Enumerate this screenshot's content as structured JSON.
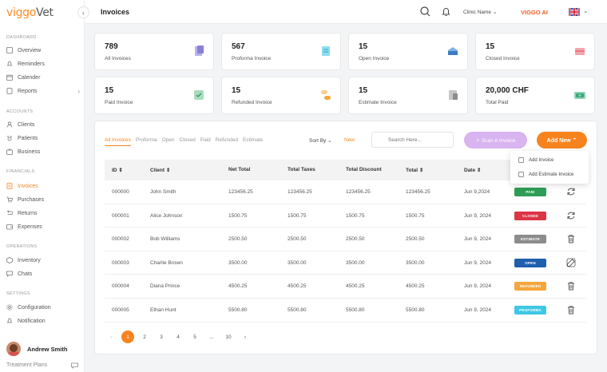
{
  "sidebar": {
    "logo_a": "viggo",
    "logo_b": "Vet",
    "collapse": "‹",
    "sections": [
      "DASHBOARD",
      "ACCOUNTS",
      "FINANCIALS",
      "OPERATIONS",
      "SETTINGS"
    ],
    "items": [
      {
        "label": "Overview"
      },
      {
        "label": "Reminders"
      },
      {
        "label": "Calender"
      },
      {
        "label": "Reports",
        "arrow": "›"
      },
      {
        "label": "Clients"
      },
      {
        "label": "Patients"
      },
      {
        "label": "Business"
      },
      {
        "label": "Invoices"
      },
      {
        "label": "Purchases"
      },
      {
        "label": "Returns"
      },
      {
        "label": "Expenses"
      },
      {
        "label": "Inventory"
      },
      {
        "label": "Chats"
      },
      {
        "label": "Configuration"
      },
      {
        "label": "Notification"
      }
    ],
    "user_name": "Andrew Smith",
    "footer_label": "Treatment Plans"
  },
  "topbar": {
    "title": "Invoices",
    "clinic_label": "Clinic Name",
    "ai_label": "VIGGO AI"
  },
  "cards": [
    {
      "value": "789",
      "label": "All Invoices",
      "color": "#8a7fd6"
    },
    {
      "value": "567",
      "label": "Proforma Invoice",
      "color": "#4dc3e6"
    },
    {
      "value": "15",
      "label": "Open Invoice",
      "color": "#3b7dc4"
    },
    {
      "value": "15",
      "label": "Closed Invoice",
      "color": "#e35a6a"
    },
    {
      "value": "15",
      "label": "Paid Invoice",
      "color": "#5bb587"
    },
    {
      "value": "15",
      "label": "Refunded Invoice",
      "color": "#f4a63c"
    },
    {
      "value": "15",
      "label": "Estimate Invoice",
      "color": "#8d8d8d"
    },
    {
      "value": "20,000 CHF",
      "label": "Total Paid",
      "color": "#3aa57a"
    }
  ],
  "filters": {
    "tabs": [
      "All Invoices",
      "Proforma",
      "Open",
      "Closed",
      "Paid",
      "Refunded",
      "Estimate"
    ],
    "sort_label": "Sort By",
    "sort_value": "New",
    "search_placeholder": "Search Here...",
    "scan_label": "Scan A Invoice",
    "add_label": "Add New"
  },
  "dropdown": {
    "items": [
      "Add Invoice",
      "Add Estimate Invoice"
    ]
  },
  "table": {
    "headers": [
      "ID",
      "Client",
      "Net Total",
      "Total Taxes",
      "Total Discount",
      "Total",
      "Date"
    ],
    "rows": [
      {
        "id": "000000",
        "client": "John Smith",
        "net": "123456.25",
        "taxes": "123456.25",
        "discount": "123456.25",
        "total": "123456.25",
        "date": "Jun 9,2024",
        "status": "PAID",
        "color": "#2f9d55",
        "action": "refresh-icon"
      },
      {
        "id": "000001",
        "client": "Alice Johnson",
        "net": "1500.75",
        "taxes": "1500.75",
        "discount": "1500.75",
        "total": "1500.75",
        "date": "Jun 9, 2024",
        "status": "CLOSED",
        "color": "#dc3545",
        "action": "refresh-icon"
      },
      {
        "id": "000002",
        "client": "Bob Williams",
        "net": "2500.50",
        "taxes": "2500.50",
        "discount": "2500.50",
        "total": "2500.50",
        "date": "Jun 9, 2024",
        "status": "ESTIMATE",
        "color": "#8c8c8c",
        "action": "trash-icon"
      },
      {
        "id": "000003",
        "client": "Charlie Brown",
        "net": "3500.00",
        "taxes": "3500.00",
        "discount": "3500.00",
        "total": "3500.00",
        "date": "Jun 9, 2024",
        "status": "OPEN",
        "color": "#1f5fae",
        "action": "edit-icon"
      },
      {
        "id": "000004",
        "client": "Diana Prince",
        "net": "4500.25",
        "taxes": "4500.25",
        "discount": "4500.25",
        "total": "4500.25",
        "date": "Jun 9, 2024",
        "status": "REFUNDED",
        "color": "#f4a63c",
        "action": "trash-icon"
      },
      {
        "id": "000005",
        "client": "Ethan Hunt",
        "net": "5500.80",
        "taxes": "5500.80",
        "discount": "5500.80",
        "total": "5500.80",
        "date": "Jun 9, 2024",
        "status": "PROFORMA",
        "color": "#3fc7e6",
        "action": "trash-icon"
      }
    ]
  },
  "pagination": {
    "prev": "‹",
    "pages": [
      "1",
      "2",
      "3",
      "4",
      "5",
      "...",
      "10"
    ],
    "next": "›",
    "current": "1"
  }
}
